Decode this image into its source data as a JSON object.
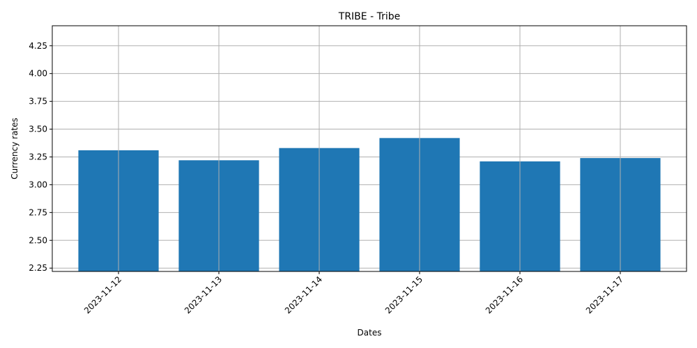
{
  "chart_data": {
    "type": "bar",
    "title": "TRIBE - Tribe",
    "xlabel": "Dates",
    "ylabel": "Currency rates",
    "categories": [
      "2023-11-12",
      "2023-11-13",
      "2023-11-14",
      "2023-11-15",
      "2023-11-16",
      "2023-11-17"
    ],
    "values": [
      3.31,
      3.22,
      3.33,
      3.42,
      3.21,
      3.24
    ],
    "ylim": [
      2.22,
      4.43
    ],
    "yticks": [
      "2.25",
      "2.50",
      "2.75",
      "3.00",
      "3.25",
      "3.50",
      "3.75",
      "4.00",
      "4.25"
    ],
    "bar_color": "#1f77b4",
    "grid": true,
    "xtick_rotation": 45
  }
}
